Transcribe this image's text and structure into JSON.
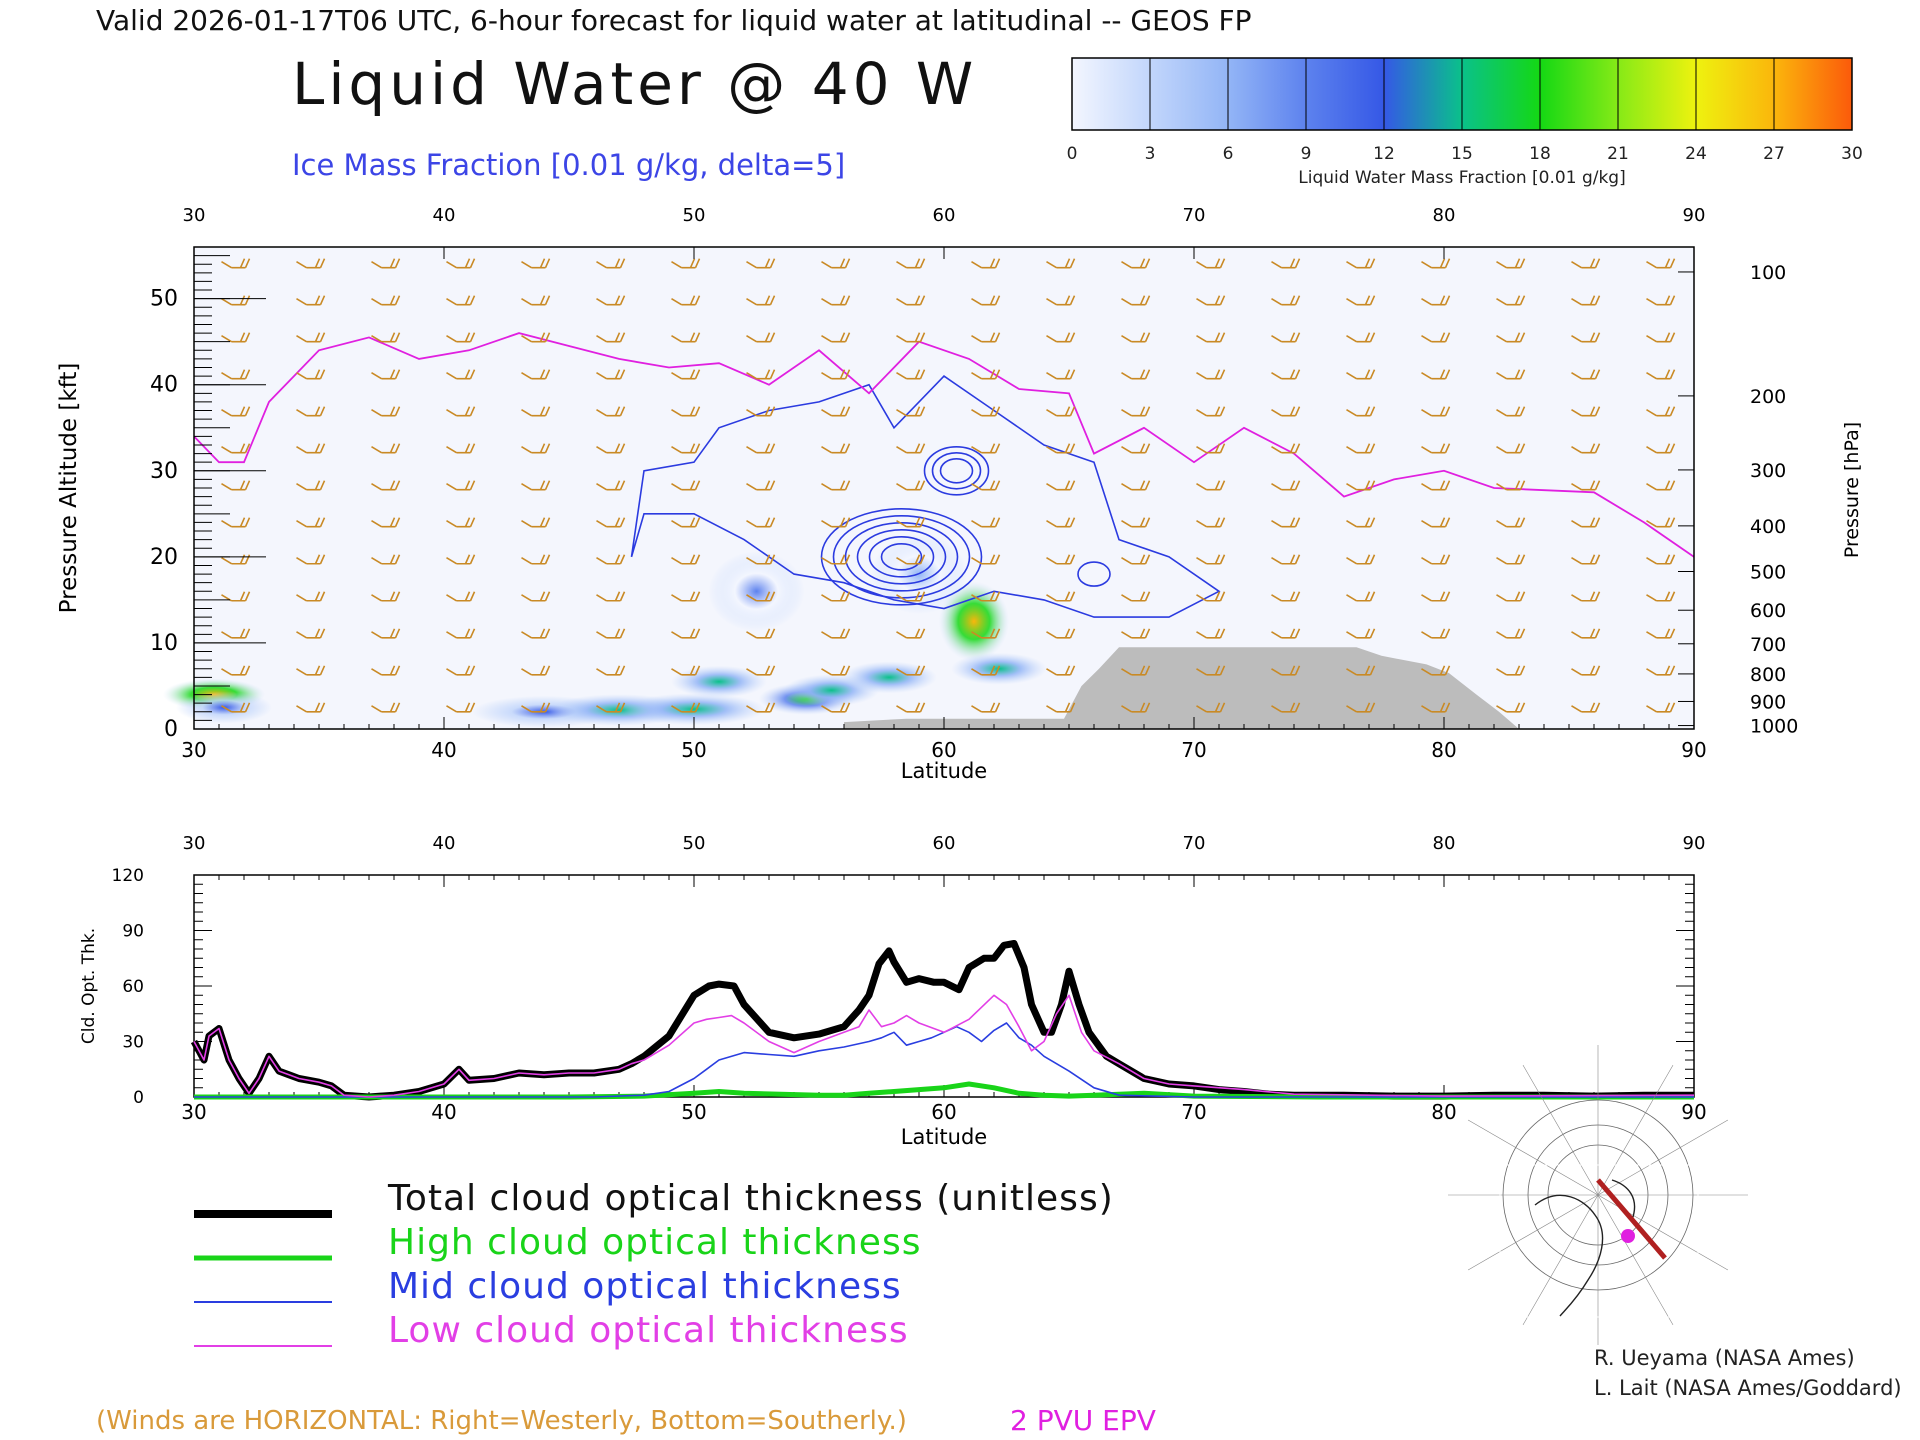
{
  "header": {
    "valid_line": "Valid 2026-01-17T06 UTC, 6-hour forecast for liquid water at latitudinal -- GEOS FP",
    "title": "Liquid Water @ 40 W",
    "subtitle": "Ice Mass Fraction [0.01 g/kg, delta=5]"
  },
  "colorbar": {
    "ticks": [
      "0",
      "3",
      "6",
      "9",
      "12",
      "15",
      "18",
      "21",
      "24",
      "27",
      "30"
    ],
    "label": "Liquid Water Mass Fraction [0.01 g/kg]",
    "colors": [
      "#f3f6ff",
      "#c2d6fb",
      "#93b5f6",
      "#5d82ee",
      "#3558e6",
      "#0ac18a",
      "#14d814",
      "#86ea17",
      "#eef20f",
      "#fbb60c",
      "#fb5a0b"
    ]
  },
  "notes": {
    "winds": "(Winds are HORIZONTAL: Right=Westerly, Bottom=Southerly.)",
    "epv": "2 PVU EPV",
    "credit1": "R. Ueyama (NASA Ames)",
    "credit2": "L. Lait (NASA Ames/Goddard)"
  },
  "legend": [
    {
      "label": "Total cloud optical thickness (unitless)",
      "color": "#000000",
      "width": 8
    },
    {
      "label": "High cloud optical thickness",
      "color": "#19d419",
      "width": 5
    },
    {
      "label": "Mid cloud optical thickness",
      "color": "#2a3ee0",
      "width": 2
    },
    {
      "label": "Low cloud optical thickness",
      "color": "#e23fe6",
      "width": 2
    }
  ],
  "chart_data": [
    {
      "type": "heatmap",
      "title": "Liquid Water @ 40 W",
      "xlabel": "Latitude",
      "ylabel": "Pressure Altitude [kft]",
      "ylabel_right": "Pressure [hPa]",
      "xlim": [
        30,
        90
      ],
      "ylim": [
        0,
        56
      ],
      "x_ticks": [
        "30",
        "40",
        "50",
        "60",
        "70",
        "80",
        "90"
      ],
      "y_ticks": [
        "0",
        "10",
        "20",
        "30",
        "40",
        "50"
      ],
      "pressure_ticks": [
        {
          "label": "100",
          "kft": 53.1
        },
        {
          "label": "200",
          "kft": 38.7
        },
        {
          "label": "300",
          "kft": 30.1
        },
        {
          "label": "400",
          "kft": 23.6
        },
        {
          "label": "500",
          "kft": 18.3
        },
        {
          "label": "600",
          "kft": 13.8
        },
        {
          "label": "700",
          "kft": 9.9
        },
        {
          "label": "800",
          "kft": 6.4
        },
        {
          "label": "900",
          "kft": 3.2
        },
        {
          "label": "1000",
          "kft": 0.4
        }
      ],
      "liquid_water_blobs": [
        {
          "lat": 30.8,
          "alt": 4.0,
          "value": 27
        },
        {
          "lat": 31.2,
          "alt": 2.5,
          "value": 12
        },
        {
          "lat": 44,
          "alt": 2.0,
          "value": 13
        },
        {
          "lat": 47,
          "alt": 2.2,
          "value": 14
        },
        {
          "lat": 50,
          "alt": 2.3,
          "value": 15
        },
        {
          "lat": 51,
          "alt": 5.5,
          "value": 14
        },
        {
          "lat": 54.5,
          "alt": 3.5,
          "value": 18
        },
        {
          "lat": 55.5,
          "alt": 4.5,
          "value": 16
        },
        {
          "lat": 57.8,
          "alt": 6.0,
          "value": 14
        },
        {
          "lat": 61.2,
          "alt": 12.5,
          "value": 27
        },
        {
          "lat": 62.2,
          "alt": 7.0,
          "value": 15
        },
        {
          "lat": 52.5,
          "alt": 16.0,
          "value": 10
        },
        {
          "lat": 59,
          "alt": 18,
          "value": 6
        }
      ],
      "terrain_mask": [
        [
          56,
          0.8
        ],
        [
          58.5,
          1.2
        ],
        [
          64.8,
          1.2
        ],
        [
          65.5,
          5
        ],
        [
          66.2,
          7
        ],
        [
          67,
          9.5
        ],
        [
          76.5,
          9.5
        ],
        [
          77.5,
          8.5
        ],
        [
          79.3,
          7.5
        ],
        [
          80.2,
          6.5
        ],
        [
          81.3,
          4
        ],
        [
          82.2,
          2
        ],
        [
          83,
          0
        ]
      ],
      "epv_2pvu_line": [
        [
          30,
          34
        ],
        [
          31,
          31
        ],
        [
          32,
          31
        ],
        [
          33,
          38
        ],
        [
          35,
          44
        ],
        [
          37,
          45.5
        ],
        [
          39,
          43
        ],
        [
          41,
          44
        ],
        [
          43,
          46
        ],
        [
          45,
          44.5
        ],
        [
          47,
          43
        ],
        [
          49,
          42
        ],
        [
          51,
          42.5
        ],
        [
          53,
          40
        ],
        [
          55,
          44
        ],
        [
          57,
          39
        ],
        [
          59,
          45
        ],
        [
          61,
          43
        ],
        [
          63,
          39.5
        ],
        [
          65,
          39
        ],
        [
          66,
          32
        ],
        [
          68,
          35
        ],
        [
          70,
          31
        ],
        [
          72,
          35
        ],
        [
          74,
          32
        ],
        [
          76,
          27
        ],
        [
          78,
          29
        ],
        [
          80,
          30
        ],
        [
          82,
          28
        ],
        [
          86,
          27.5
        ],
        [
          88,
          24
        ],
        [
          90,
          20
        ]
      ],
      "ice_contour_centers": [
        {
          "lat": 58.3,
          "alt": 20,
          "value": 30
        },
        {
          "lat": 60.5,
          "alt": 30,
          "value": 15
        },
        {
          "lat": 66,
          "alt": 18,
          "value": 5
        }
      ]
    },
    {
      "type": "line",
      "xlabel": "Latitude",
      "ylabel": "Cld. Opt. Thk.",
      "xlim": [
        30,
        90
      ],
      "ylim": [
        0,
        120
      ],
      "x_ticks": [
        "30",
        "40",
        "50",
        "60",
        "70",
        "80",
        "90"
      ],
      "y_ticks": [
        "0",
        "30",
        "60",
        "90",
        "120"
      ],
      "series": [
        {
          "name": "Total cloud optical thickness (unitless)",
          "x": [
            30,
            30.4,
            30.6,
            31,
            31.4,
            31.8,
            32.2,
            32.6,
            33,
            33.4,
            33.8,
            34.2,
            35,
            35.5,
            36,
            37,
            38,
            39,
            40,
            40.6,
            41,
            42,
            43,
            44,
            45,
            46,
            47,
            47.5,
            48,
            49,
            50,
            50.6,
            51,
            51.6,
            52,
            53,
            54,
            55,
            56,
            56.6,
            57,
            57.4,
            57.8,
            58,
            58.5,
            59,
            59.6,
            60,
            60.6,
            61,
            61.6,
            62,
            62.4,
            62.8,
            63.2,
            63.5,
            64,
            64.3,
            64.7,
            65,
            65.4,
            65.8,
            66.5,
            67,
            68,
            69,
            70,
            71,
            72,
            73,
            74,
            76,
            78,
            80,
            82,
            84,
            86,
            88,
            90
          ],
          "y": [
            30,
            20,
            33,
            37,
            20,
            10,
            2,
            10,
            22,
            14,
            12,
            10,
            8,
            6,
            1,
            0,
            1,
            3,
            7,
            15,
            9,
            10,
            13,
            12,
            13,
            13,
            15,
            18,
            22,
            33,
            55,
            60,
            61,
            60,
            50,
            35,
            32,
            34,
            38,
            47,
            55,
            72,
            79,
            73,
            62,
            64,
            62,
            62,
            58,
            70,
            75,
            75,
            82,
            83,
            70,
            50,
            35,
            35,
            50,
            68,
            50,
            35,
            22,
            18,
            10,
            7,
            6,
            4,
            3,
            1.5,
            1,
            1,
            0.5,
            0.5,
            1,
            1,
            0.5,
            1,
            1
          ]
        },
        {
          "name": "High cloud optical thickness",
          "x": [
            30,
            45,
            48,
            50,
            51,
            52,
            55,
            56,
            57,
            58,
            59,
            60,
            61,
            62,
            63,
            64,
            65,
            66,
            68,
            70,
            75,
            80,
            90
          ],
          "y": [
            0,
            0,
            0.5,
            2,
            3,
            2,
            1,
            1,
            2,
            3,
            4,
            5,
            7,
            5,
            2,
            1,
            0.5,
            1,
            2,
            0.5,
            0,
            0,
            0
          ]
        },
        {
          "name": "Mid cloud optical thickness",
          "x": [
            30,
            46,
            48,
            49,
            50,
            50.5,
            51,
            52,
            53,
            54,
            55,
            56,
            57,
            57.5,
            58,
            58.5,
            59,
            59.5,
            60,
            60.5,
            61,
            61.5,
            62,
            62.5,
            63,
            63.5,
            64,
            65,
            66,
            67,
            70,
            90
          ],
          "y": [
            0,
            0,
            1,
            3,
            10,
            15,
            20,
            24,
            23,
            22,
            25,
            27,
            30,
            32,
            35,
            28,
            30,
            32,
            35,
            38,
            35,
            30,
            36,
            40,
            32,
            28,
            22,
            14,
            5,
            1,
            0,
            0
          ]
        },
        {
          "name": "Low cloud optical thickness",
          "x": [
            30,
            30.4,
            30.6,
            31,
            31.4,
            31.8,
            32.2,
            32.6,
            33,
            33.4,
            33.8,
            34.2,
            35,
            35.5,
            36,
            37,
            38,
            39,
            40,
            40.6,
            41,
            42,
            43,
            44,
            45,
            46,
            47,
            47.5,
            48,
            49,
            50,
            50.5,
            51,
            51.5,
            52,
            53,
            54,
            55,
            56,
            56.6,
            57,
            57.5,
            58,
            58.5,
            59,
            60,
            61,
            62,
            62.5,
            63,
            63.5,
            64,
            64.5,
            65,
            65.5,
            66,
            67,
            68,
            69,
            70,
            72,
            74,
            80,
            90
          ],
          "y": [
            30,
            20,
            33,
            37,
            20,
            10,
            2,
            10,
            22,
            14,
            12,
            10,
            8,
            6,
            1,
            0,
            1,
            3,
            7,
            15,
            9,
            10,
            13,
            12,
            13,
            13,
            15,
            18,
            20,
            28,
            40,
            42,
            43,
            44,
            40,
            30,
            24,
            30,
            35,
            38,
            47,
            38,
            40,
            44,
            40,
            35,
            42,
            55,
            50,
            38,
            25,
            30,
            45,
            55,
            35,
            25,
            18,
            10,
            7,
            6,
            4,
            1.5,
            0.5,
            1
          ]
        }
      ]
    }
  ]
}
